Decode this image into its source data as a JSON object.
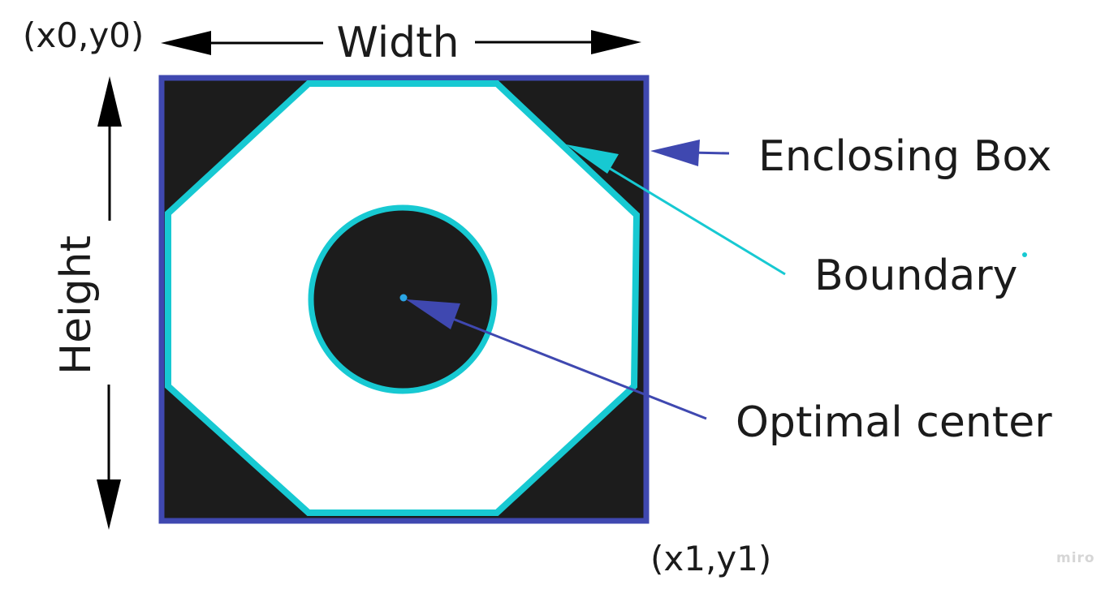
{
  "corners": {
    "top_left": "(x0,y0)",
    "bottom_right": "(x1,y1)"
  },
  "dimensions": {
    "width": "Width",
    "height": "Height"
  },
  "callouts": {
    "enclosing_box": "Enclosing Box",
    "boundary": "Boundary",
    "optimal_center": "Optimal center"
  },
  "watermark": "miro",
  "colors": {
    "enclosing_box": "#3f48b0",
    "boundary": "#17c9d2",
    "fill_dark": "#1c1c1c",
    "interior": "#ffffff",
    "text": "#1b1b1b",
    "arrow": "#000000"
  }
}
